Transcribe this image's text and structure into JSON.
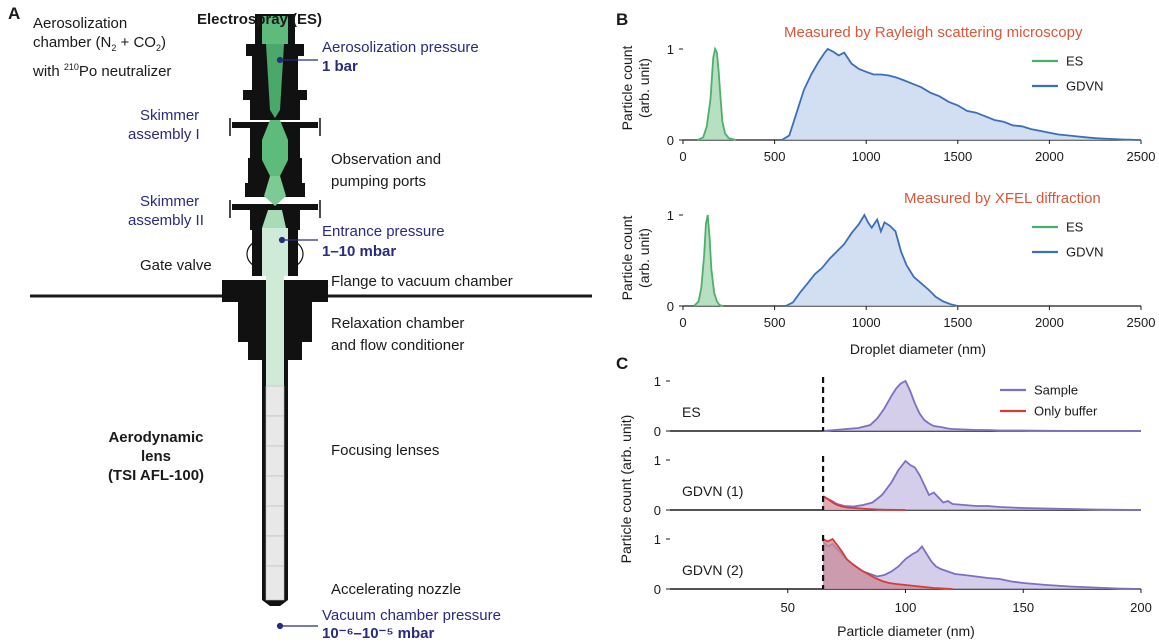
{
  "panelA": {
    "letter": "A",
    "top_title": "Electrospray (ES)",
    "aero_chamber_line1": "Aerosolization",
    "aero_chamber_line2a": "chamber (N",
    "aero_chamber_sub2": "2",
    "aero_chamber_line2b": " + CO",
    "aero_chamber_sub2b": "2",
    "aero_chamber_line2c": ")",
    "aero_chamber_line3a": "with ",
    "aero_chamber_sup": "210",
    "aero_chamber_line3b": "Po neutralizer",
    "aero_pressure_label": "Aerosolization pressure",
    "aero_pressure_value": "1 bar",
    "skimmer1_line1": "Skimmer",
    "skimmer1_line2": "assembly I",
    "observation_line1": "Observation and",
    "observation_line2": "pumping ports",
    "skimmer2_line1": "Skimmer",
    "skimmer2_line2": "assembly II",
    "entrance_pressure_label": "Entrance pressure",
    "entrance_pressure_value": "1–10 mbar",
    "gate_valve": "Gate valve",
    "flange": "Flange to vacuum chamber",
    "relaxation_line1": "Relaxation chamber",
    "relaxation_line2": "and flow conditioner",
    "lens_line1": "Aerodynamic",
    "lens_line2": "lens",
    "lens_line3": "(TSI AFL-100)",
    "focusing": "Focusing lenses",
    "nozzle": "Accelerating nozzle",
    "vacuum_pressure_label": "Vacuum chamber pressure",
    "vacuum_pressure_value": "10⁻⁶–10⁻⁵ mbar",
    "colors": {
      "es_dark": "#5dbb7c",
      "es_light": "#cfead7",
      "label_blue": "#2a2a7e"
    }
  },
  "panelB": {
    "letter": "B",
    "title_top": "Measured by Rayleigh scattering microscopy",
    "title_bottom": "Measured by XFEL diffraction",
    "xlabel": "Droplet diameter (nm)",
    "ylabel_line1": "Particle count",
    "ylabel_line2": "(arb. unit)",
    "legend": [
      "ES",
      "GDVN"
    ]
  },
  "panelC": {
    "letter": "C",
    "xlabel": "Particle diameter (nm)",
    "ylabel": "Particle count (arb. unit)",
    "rows": [
      "ES",
      "GDVN (1)",
      "GDVN (2)"
    ],
    "legend": [
      "Sample",
      "Only buffer"
    ]
  },
  "chart_data": [
    {
      "type": "area",
      "title": "Measured by Rayleigh scattering microscopy",
      "xlabel": "",
      "ylabel": "Particle count (arb. unit)",
      "xlim": [
        0,
        2500
      ],
      "ylim": [
        0,
        1
      ],
      "xticks": [
        0,
        500,
        1000,
        1500,
        2000,
        2500
      ],
      "yticks": [
        0,
        1
      ],
      "legend_position": "top-right",
      "series": [
        {
          "name": "ES",
          "color": "#4daf6a",
          "fill": "#9fd6ae",
          "x": [
            80,
            110,
            130,
            150,
            165,
            175,
            185,
            195,
            205,
            215,
            230,
            250,
            270,
            290
          ],
          "y": [
            0,
            0.03,
            0.15,
            0.45,
            0.9,
            1.0,
            0.96,
            0.75,
            0.45,
            0.2,
            0.07,
            0.02,
            0.01,
            0
          ]
        },
        {
          "name": "GDVN",
          "color": "#3d6fb6",
          "fill": "#c3d3ec",
          "x": [
            540,
            580,
            620,
            660,
            700,
            740,
            770,
            790,
            820,
            850,
            880,
            920,
            960,
            1000,
            1040,
            1080,
            1120,
            1160,
            1200,
            1250,
            1300,
            1350,
            1400,
            1450,
            1500,
            1550,
            1600,
            1650,
            1700,
            1750,
            1800,
            1850,
            1900,
            1950,
            2000,
            2050,
            2100,
            2150,
            2200,
            2250,
            2300,
            2400,
            2500
          ],
          "y": [
            0,
            0.05,
            0.3,
            0.55,
            0.72,
            0.86,
            0.95,
            1.0,
            0.97,
            0.93,
            0.96,
            0.84,
            0.78,
            0.75,
            0.72,
            0.72,
            0.71,
            0.69,
            0.66,
            0.62,
            0.58,
            0.52,
            0.48,
            0.42,
            0.38,
            0.32,
            0.3,
            0.26,
            0.22,
            0.2,
            0.16,
            0.15,
            0.12,
            0.1,
            0.08,
            0.06,
            0.05,
            0.04,
            0.03,
            0.02,
            0.015,
            0.005,
            0
          ]
        }
      ]
    },
    {
      "type": "area",
      "title": "Measured by XFEL diffraction",
      "xlabel": "Droplet diameter (nm)",
      "ylabel": "Particle count (arb. unit)",
      "xlim": [
        0,
        2500
      ],
      "ylim": [
        0,
        1
      ],
      "xticks": [
        0,
        500,
        1000,
        1500,
        2000,
        2500
      ],
      "yticks": [
        0,
        1
      ],
      "legend_position": "top-right",
      "series": [
        {
          "name": "ES",
          "color": "#4daf6a",
          "fill": "#9fd6ae",
          "x": [
            60,
            85,
            100,
            115,
            125,
            135,
            145,
            155,
            170,
            185,
            200,
            220
          ],
          "y": [
            0,
            0.05,
            0.2,
            0.55,
            0.9,
            1.0,
            0.75,
            0.4,
            0.15,
            0.05,
            0.01,
            0
          ]
        },
        {
          "name": "GDVN",
          "color": "#3d6fb6",
          "fill": "#c3d3ec",
          "x": [
            560,
            600,
            640,
            680,
            720,
            760,
            800,
            840,
            880,
            920,
            960,
            990,
            1010,
            1030,
            1060,
            1080,
            1100,
            1130,
            1160,
            1190,
            1220,
            1260,
            1300,
            1340,
            1380,
            1420,
            1460,
            1500
          ],
          "y": [
            0,
            0.04,
            0.15,
            0.25,
            0.35,
            0.42,
            0.52,
            0.6,
            0.68,
            0.8,
            0.9,
            1.0,
            0.92,
            0.86,
            0.95,
            0.82,
            0.92,
            0.88,
            0.82,
            0.6,
            0.45,
            0.32,
            0.25,
            0.18,
            0.1,
            0.05,
            0.02,
            0
          ]
        }
      ]
    },
    {
      "type": "area",
      "title": "",
      "xlabel": "Particle diameter (nm)",
      "ylabel": "Particle count (arb. unit)",
      "xlim": [
        0,
        200
      ],
      "xticks": [
        50,
        100,
        150,
        200
      ],
      "yticks": [
        0,
        1
      ],
      "cutoff_line_x": 65,
      "legend_position": "top-right",
      "panels": [
        {
          "name": "ES",
          "series": [
            {
              "name": "Sample",
              "color": "#7f6fbf",
              "fill": "#c6bde3",
              "x": [
                65,
                70,
                75,
                80,
                85,
                88,
                91,
                94,
                96,
                98,
                100,
                102,
                104,
                106,
                108,
                110,
                112,
                115,
                118,
                120,
                125,
                130,
                135,
                140,
                150,
                160,
                170,
                180,
                190,
                200
              ],
              "y": [
                0,
                0.02,
                0.04,
                0.06,
                0.12,
                0.25,
                0.45,
                0.7,
                0.85,
                0.95,
                1.0,
                0.8,
                0.55,
                0.35,
                0.22,
                0.15,
                0.1,
                0.08,
                0.05,
                0.04,
                0.03,
                0.02,
                0.02,
                0.01,
                0.01,
                0.005,
                0.003,
                0.002,
                0.001,
                0
              ]
            }
          ]
        },
        {
          "name": "GDVN (1)",
          "series": [
            {
              "name": "Sample",
              "color": "#7f6fbf",
              "fill": "#c6bde3",
              "x": [
                65,
                68,
                71,
                74,
                78,
                82,
                86,
                90,
                94,
                97,
                100,
                102,
                104,
                106,
                108,
                110,
                112,
                114,
                116,
                118,
                120,
                125,
                130,
                135,
                140,
                145,
                150,
                160,
                170,
                180,
                190,
                200
              ],
              "y": [
                0.25,
                0.2,
                0.12,
                0.08,
                0.07,
                0.1,
                0.15,
                0.3,
                0.55,
                0.8,
                0.98,
                0.9,
                0.85,
                0.7,
                0.5,
                0.3,
                0.35,
                0.25,
                0.15,
                0.18,
                0.12,
                0.1,
                0.08,
                0.08,
                0.06,
                0.05,
                0.04,
                0.03,
                0.02,
                0.01,
                0.005,
                0
              ]
            },
            {
              "name": "Only buffer",
              "color": "#d63b3b",
              "fill": "#e8a0a0",
              "x": [
                65,
                67,
                69,
                71,
                73,
                75,
                78,
                81,
                84,
                88,
                92,
                96,
                100
              ],
              "y": [
                0.28,
                0.22,
                0.15,
                0.1,
                0.07,
                0.05,
                0.04,
                0.03,
                0.02,
                0.01,
                0.005,
                0.002,
                0
              ]
            }
          ]
        },
        {
          "name": "GDVN (2)",
          "series": [
            {
              "name": "Sample",
              "color": "#7f6fbf",
              "fill": "#c6bde3",
              "x": [
                65,
                67,
                69,
                71,
                73,
                76,
                79,
                82,
                85,
                88,
                91,
                94,
                97,
                100,
                103,
                105,
                107,
                109,
                111,
                113,
                115,
                118,
                121,
                125,
                130,
                135,
                140,
                145,
                150,
                155,
                160,
                170,
                180,
                190,
                200
              ],
              "y": [
                0.95,
                0.85,
                0.9,
                0.8,
                0.7,
                0.55,
                0.45,
                0.35,
                0.3,
                0.25,
                0.28,
                0.35,
                0.45,
                0.6,
                0.7,
                0.75,
                0.85,
                0.7,
                0.55,
                0.45,
                0.4,
                0.35,
                0.3,
                0.28,
                0.25,
                0.22,
                0.2,
                0.15,
                0.12,
                0.1,
                0.08,
                0.05,
                0.03,
                0.01,
                0
              ]
            },
            {
              "name": "Only buffer",
              "color": "#d63b3b",
              "fill": "#c98a9a",
              "x": [
                65,
                67,
                69,
                71,
                73,
                75,
                78,
                81,
                84,
                87,
                90,
                93,
                96,
                100,
                104,
                108,
                112,
                116,
                120
              ],
              "y": [
                1.0,
                0.95,
                1.0,
                0.88,
                0.75,
                0.6,
                0.48,
                0.38,
                0.3,
                0.22,
                0.16,
                0.12,
                0.1,
                0.08,
                0.06,
                0.04,
                0.02,
                0.01,
                0
              ]
            }
          ]
        }
      ]
    }
  ]
}
